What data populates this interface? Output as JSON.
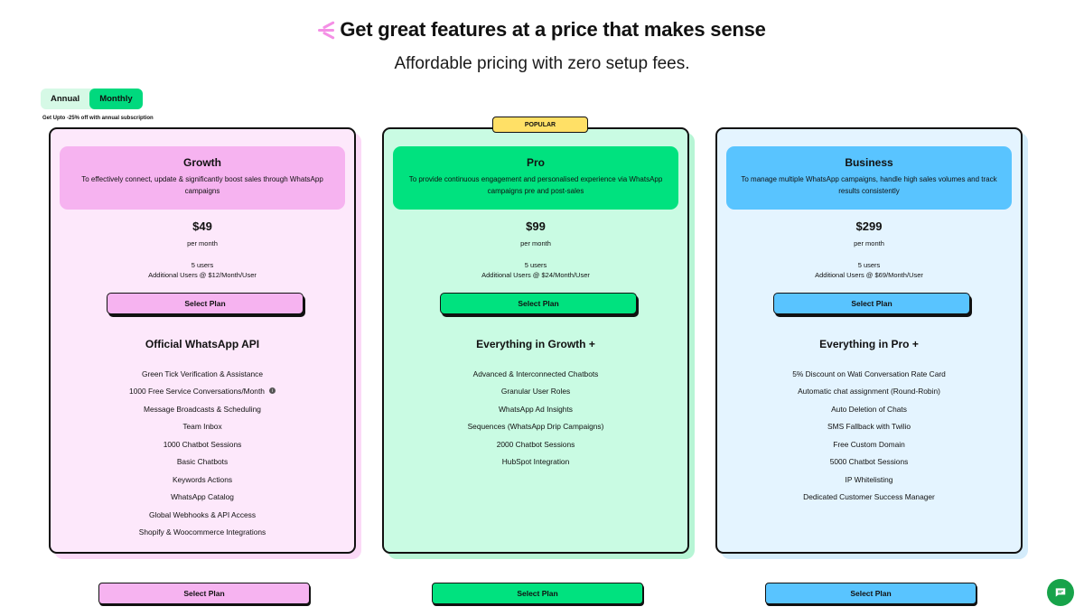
{
  "hero": {
    "title": "Get great features at a price that makes sense",
    "subtitle": "Affordable pricing with zero setup fees."
  },
  "billing_toggle": {
    "annual_label": "Annual",
    "monthly_label": "Monthly",
    "selected": "Monthly",
    "discount_note": "Get Upto -25% off with annual subscription"
  },
  "popular_badge": "POPULAR",
  "plans": [
    {
      "name": "Growth",
      "description": "To effectively connect, update & significantly boost sales through WhatsApp campaigns",
      "price": "$49",
      "period": "per month",
      "users": "5 users",
      "additional_users": "Additional Users @ $12/Month/User",
      "select_label": "Select Plan",
      "features_title": "Official WhatsApp API",
      "features": [
        "Green Tick Verification & Assistance",
        "1000 Free Service Conversations/Month",
        "Message Broadcasts & Scheduling",
        "Team Inbox",
        "1000 Chatbot Sessions",
        "Basic Chatbots",
        "Keywords Actions",
        "WhatsApp Catalog",
        "Global Webhooks & API Access",
        "Shopify & Woocommerce Integrations"
      ],
      "colors": {
        "card_bg": "#fde8fb",
        "head_bg": "#f6b3f0",
        "button_bg": "#f6b3f0",
        "shadow": "#fbd9f7"
      }
    },
    {
      "name": "Pro",
      "description": "To provide continuous engagement and personalised experience via WhatsApp campaigns pre and post-sales",
      "price": "$99",
      "period": "per month",
      "users": "5 users",
      "additional_users": "Additional Users @ $24/Month/User",
      "select_label": "Select Plan",
      "features_title": "Everything in Growth +",
      "features": [
        "Advanced & Interconnected Chatbots",
        "Granular User Roles",
        "WhatsApp Ad Insights",
        "Sequences (WhatsApp Drip Campaigns)",
        "2000 Chatbot Sessions",
        "HubSpot Integration"
      ],
      "colors": {
        "card_bg": "#c9fbe3",
        "head_bg": "#00e27f",
        "button_bg": "#00e27f",
        "shadow": "#b7f5d5"
      }
    },
    {
      "name": "Business",
      "description": "To manage multiple WhatsApp campaigns, handle high sales volumes and track results consistently",
      "price": "$299",
      "period": "per month",
      "users": "5 users",
      "additional_users": "Additional Users @ $69/Month/User",
      "select_label": "Select Plan",
      "features_title": "Everything in Pro +",
      "features": [
        "5% Discount on Wati Conversation Rate Card",
        "Automatic chat assignment (Round-Robin)",
        "Auto Deletion of Chats",
        "SMS Fallback with Twilio",
        "Free Custom Domain",
        "5000 Chatbot Sessions",
        "IP Whitelisting",
        "Dedicated Customer Success Manager"
      ],
      "colors": {
        "card_bg": "#e4f4ff",
        "head_bg": "#59c4ff",
        "button_bg": "#59c4ff",
        "shadow": "#d4ecfb"
      }
    }
  ],
  "bottom_buttons": [
    "Select Plan",
    "Select Plan",
    "Select Plan"
  ],
  "icons": {
    "info": "info-icon",
    "chat": "chat-bubble-icon",
    "sparkle": "sparkle-icon"
  }
}
